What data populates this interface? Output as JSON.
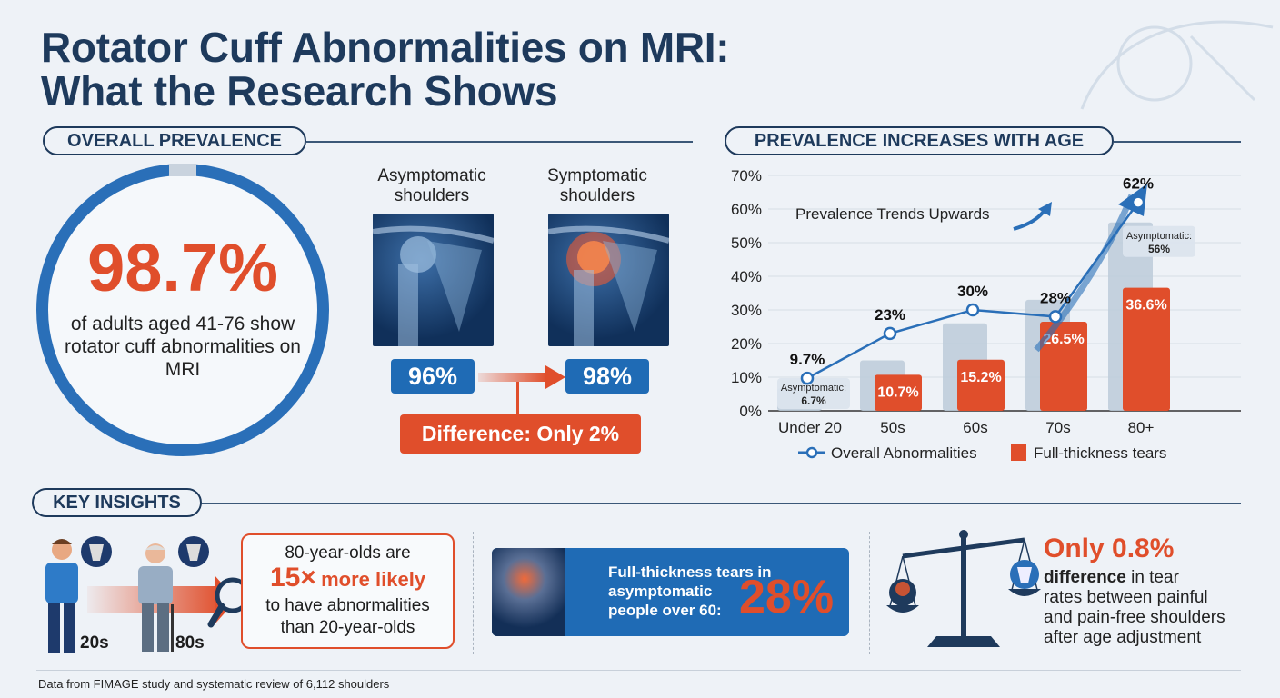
{
  "title": {
    "line1": "Rotator Cuff Abnormalities on MRI:",
    "line2": "What the Research Shows"
  },
  "overall": {
    "heading": "OVERALL PREVALENCE",
    "big_value": "98.7%",
    "ring_fill_percent": 98.7,
    "description": "of adults aged 41-76 show rotator cuff abnormalities on MRI",
    "asymptomatic_label": "Asymptomatic shoulders",
    "symptomatic_label": "Symptomatic shoulders",
    "asymptomatic_value": "96%",
    "symptomatic_value": "98%",
    "difference": "Difference: Only 2%"
  },
  "chart_section": {
    "heading": "PREVALENCE INCREASES WITH AGE",
    "annotation": "Prevalence Trends Upwards"
  },
  "chart_data": {
    "type": "bar",
    "categories": [
      "Under 20",
      "50s",
      "60s",
      "70s",
      "80+"
    ],
    "ylim": [
      0,
      70
    ],
    "yticks": [
      "0%",
      "10%",
      "20%",
      "30%",
      "40%",
      "50%",
      "60%",
      "70%"
    ],
    "grid": true,
    "legend_position": "bottom",
    "series": [
      {
        "name": "Overall Abnormalities",
        "kind": "line",
        "values": [
          9.7,
          23,
          30,
          28,
          62
        ],
        "labels": [
          "9.7%",
          "23%",
          "30%",
          "28%",
          "62%"
        ],
        "color": "#2a6fb8"
      },
      {
        "name": "Full-thickness tears",
        "kind": "bar",
        "values": [
          null,
          10.7,
          15.2,
          26.5,
          36.6
        ],
        "labels": [
          "",
          "10.7%",
          "15.2%",
          "26.5%",
          "36.6%"
        ],
        "color": "#e04e2b"
      },
      {
        "kind": "bar",
        "values": [
          6.7,
          15,
          26,
          33,
          56
        ],
        "color": "#bccbd9"
      }
    ],
    "callouts": [
      {
        "category": "Under 20",
        "label": "Asymptomatic:",
        "value": "6.7%"
      },
      {
        "category": "80+",
        "label": "Asymptomatic:",
        "value": "56%"
      }
    ]
  },
  "insights": {
    "heading": "KEY INSIGHTS",
    "age_young": "20s",
    "age_old": "80s",
    "likely_line1": "80-year-olds are",
    "likely_big": "15×",
    "likely_bold": "more likely",
    "likely_line3": "to have abnormalities",
    "likely_line4": "than 20-year-olds",
    "tears_text1": "Full-thickness tears in",
    "tears_text2": "asymptomatic",
    "tears_text3": "people over 60:",
    "tears_value": "28%",
    "diff_big": "Only 0.8%",
    "diff_bold": "difference",
    "diff_rest1": " in tear",
    "diff_rest2": "rates between painful",
    "diff_rest3": "and pain-free shoulders",
    "diff_rest4": "after age adjustment"
  },
  "footer": "Data from FIMAGE study and systematic review of 6,112 shoulders",
  "colors": {
    "navy": "#1e3a5c",
    "blue": "#1f6bb5",
    "orange": "#e04e2b",
    "grey_bar": "#bccbd9",
    "background": "#eef2f7"
  }
}
